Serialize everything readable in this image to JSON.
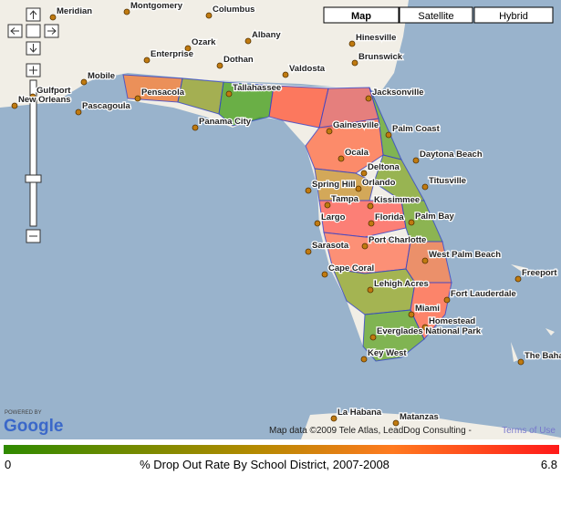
{
  "map_type_buttons": [
    "Map",
    "Satellite",
    "Hybrid"
  ],
  "places": [
    "Montgomery",
    "Columbus",
    "Meridian",
    "Albany",
    "Ozark",
    "Hinesville",
    "Enterprise",
    "Dothan",
    "Brunswick",
    "Mobile",
    "Valdosta",
    "Pensacola",
    "Gulfport",
    "Pascagoula",
    "Tallahassee",
    "Jacksonville",
    "Panama City",
    "Gainesville",
    "Palm Coast",
    "Daytona Beach",
    "Ocala",
    "Deltona",
    "Spring Hill",
    "Orlando",
    "Titusville",
    "Tampa",
    "Kissimmee",
    "Largo",
    "Florida",
    "Palm Bay",
    "Port Charlotte",
    "Sarasota",
    "West Palm Beach",
    "Cape Coral",
    "Freeport",
    "Lehigh Acres",
    "Fort Lauderdale",
    "Miami",
    "Homestead",
    "Everglades National Park",
    "Key West",
    "The Bahamas",
    "La Habana",
    "Matanzas",
    "New Orleans"
  ],
  "attribution": {
    "powered_by": "POWERED BY",
    "logo": "Google",
    "map_data": "Map data ©2009 Tele Atlas, LeadDog Consulting -",
    "terms": "Terms of Use"
  },
  "legend": {
    "min": 0,
    "max": 6.8,
    "title": "% Drop Out Rate By School District, 2007-2008"
  }
}
